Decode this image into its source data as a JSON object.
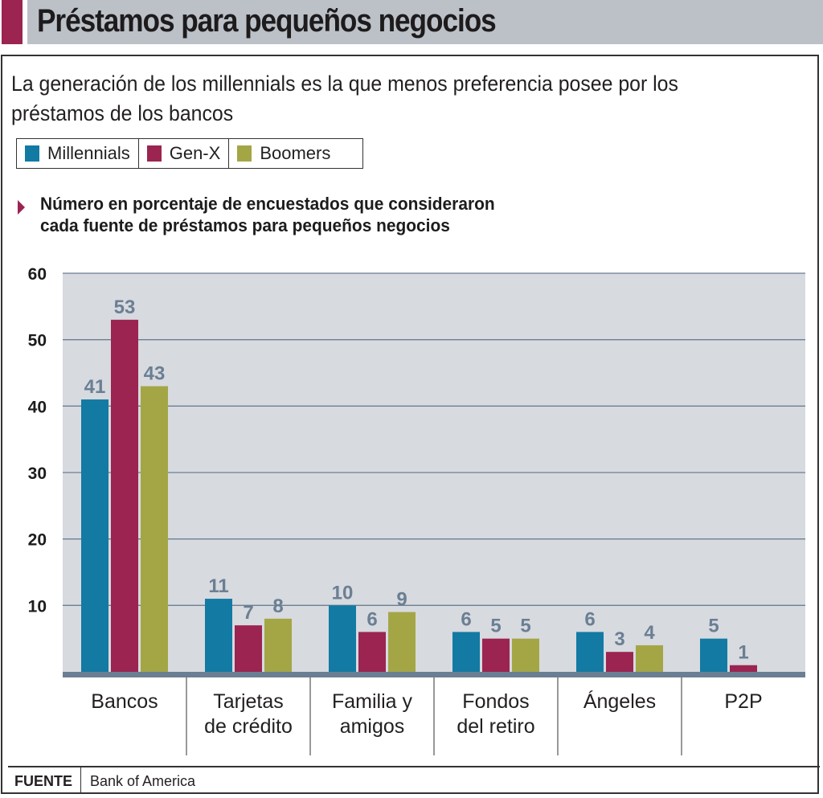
{
  "header": {
    "title": "Préstamos para pequeños negocios",
    "accent_color": "#9b2451",
    "bar_color": "#bcc1c8"
  },
  "subtitle": "La generación de los millennials es la que menos preferencia posee por los préstamos de los bancos",
  "legend": [
    {
      "label": "Millennials",
      "color": "#137aa3"
    },
    {
      "label": "Gen-X",
      "color": "#9b2451"
    },
    {
      "label": "Boomers",
      "color": "#a4a646"
    }
  ],
  "note": {
    "line1": "Número en porcentaje de encuestados que consideraron",
    "line2": "cada fuente de préstamos para pequeños negocios",
    "icon": "triangle-right-icon"
  },
  "footer": {
    "label": "FUENTE",
    "source": "Bank of America"
  },
  "chart_data": {
    "type": "bar",
    "title": "Préstamos para pequeños negocios",
    "subtitle": "Número en porcentaje de encuestados que consideraron cada fuente de préstamos para pequeños negocios",
    "categories": [
      [
        "Bancos"
      ],
      [
        "Tarjetas",
        "de crédito"
      ],
      [
        "Familia y",
        "amigos"
      ],
      [
        "Fondos",
        "del retiro"
      ],
      [
        "Ángeles"
      ],
      [
        "P2P"
      ]
    ],
    "series": [
      {
        "name": "Millennials",
        "color": "#137aa3",
        "values": [
          41,
          11,
          10,
          6,
          6,
          5
        ]
      },
      {
        "name": "Gen-X",
        "color": "#9b2451",
        "values": [
          53,
          7,
          6,
          5,
          3,
          1
        ]
      },
      {
        "name": "Boomers",
        "color": "#a4a646",
        "values": [
          43,
          8,
          9,
          5,
          4,
          null
        ]
      }
    ],
    "yticks": [
      10,
      20,
      30,
      40,
      50,
      60
    ],
    "ylim": [
      0,
      60
    ],
    "xlabel": "",
    "ylabel": "",
    "grid": true,
    "legend_position": "top-left",
    "plot_bg": "#d7dadf",
    "label_color": "#6b7f93",
    "baseline_color": "#6b7f93"
  }
}
